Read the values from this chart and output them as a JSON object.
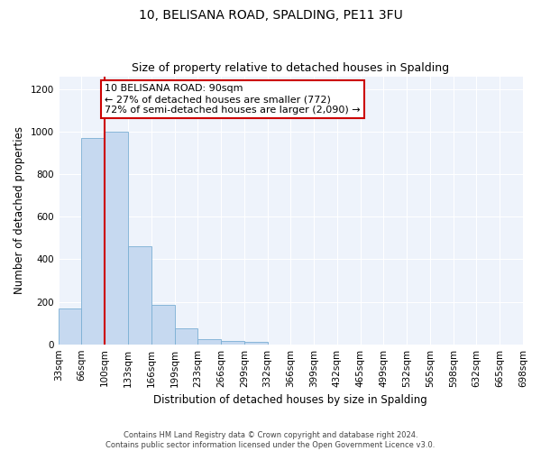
{
  "title": "10, BELISANA ROAD, SPALDING, PE11 3FU",
  "subtitle": "Size of property relative to detached houses in Spalding",
  "xlabel": "Distribution of detached houses by size in Spalding",
  "ylabel": "Number of detached properties",
  "bar_values": [
    170,
    970,
    1000,
    460,
    185,
    75,
    25,
    15,
    10,
    0,
    0,
    0,
    0,
    0,
    0,
    0,
    0,
    0,
    0,
    0
  ],
  "bar_color": "#c6d9f0",
  "bar_edge_color": "#7bafd4",
  "x_labels": [
    "33sqm",
    "66sqm",
    "100sqm",
    "133sqm",
    "166sqm",
    "199sqm",
    "233sqm",
    "266sqm",
    "299sqm",
    "332sqm",
    "366sqm",
    "399sqm",
    "432sqm",
    "465sqm",
    "499sqm",
    "532sqm",
    "565sqm",
    "598sqm",
    "632sqm",
    "665sqm",
    "698sqm"
  ],
  "ylim": [
    0,
    1260
  ],
  "yticks": [
    0,
    200,
    400,
    600,
    800,
    1000,
    1200
  ],
  "red_line_x": 2.0,
  "annotation_text": "10 BELISANA ROAD: 90sqm\n← 27% of detached houses are smaller (772)\n72% of semi-detached houses are larger (2,090) →",
  "annotation_box_facecolor": "#ffffff",
  "annotation_box_edgecolor": "#cc0000",
  "footer_line1": "Contains HM Land Registry data © Crown copyright and database right 2024.",
  "footer_line2": "Contains public sector information licensed under the Open Government Licence v3.0.",
  "bg_color": "#ffffff",
  "plot_bg_color": "#eef3fb",
  "grid_color": "#ffffff",
  "title_fontsize": 10,
  "subtitle_fontsize": 9,
  "axis_label_fontsize": 8.5,
  "tick_fontsize": 7.5,
  "annotation_fontsize": 8
}
